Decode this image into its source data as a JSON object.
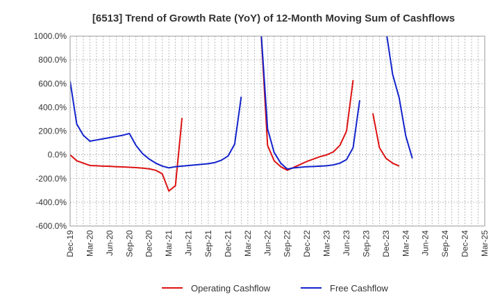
{
  "chart_data": {
    "type": "line",
    "title": "[6513]  Trend of Growth Rate (YoY) of 12-Month Moving Sum of Cashflows",
    "xlabel": "",
    "ylabel": "",
    "ylim": [
      -600,
      1000
    ],
    "yticks": [
      1000,
      800,
      600,
      400,
      200,
      0,
      -200,
      -400,
      -600
    ],
    "ytick_labels": [
      "1000.0%",
      "800.0%",
      "600.0%",
      "400.0%",
      "200.0%",
      "0.0%",
      "-200.0%",
      "-400.0%",
      "-600.0%"
    ],
    "x_months": [
      "Dec-19",
      "Jan-20",
      "Feb-20",
      "Mar-20",
      "Apr-20",
      "May-20",
      "Jun-20",
      "Jul-20",
      "Aug-20",
      "Sep-20",
      "Oct-20",
      "Nov-20",
      "Dec-20",
      "Jan-21",
      "Feb-21",
      "Mar-21",
      "Apr-21",
      "May-21",
      "Jun-21",
      "Jul-21",
      "Aug-21",
      "Sep-21",
      "Oct-21",
      "Nov-21",
      "Dec-21",
      "Jan-22",
      "Feb-22",
      "Mar-22",
      "Apr-22",
      "May-22",
      "Jun-22",
      "Jul-22",
      "Aug-22",
      "Sep-22",
      "Oct-22",
      "Nov-22",
      "Dec-22",
      "Jan-23",
      "Feb-23",
      "Mar-23",
      "Apr-23",
      "May-23",
      "Jun-23",
      "Jul-23",
      "Aug-23",
      "Sep-23",
      "Oct-23",
      "Nov-23",
      "Dec-23",
      "Jan-24",
      "Feb-24",
      "Mar-24",
      "Apr-24",
      "May-24",
      "Jun-24",
      "Jul-24",
      "Aug-24",
      "Sep-24",
      "Oct-24",
      "Nov-24",
      "Dec-24",
      "Jan-25",
      "Feb-25",
      "Mar-25"
    ],
    "x_tick_labels": [
      "Dec-19",
      "Mar-20",
      "Jun-20",
      "Sep-20",
      "Dec-20",
      "Mar-21",
      "Jun-21",
      "Sep-21",
      "Dec-21",
      "Mar-22",
      "Jun-22",
      "Sep-22",
      "Dec-22",
      "Mar-23",
      "Jun-23",
      "Sep-23",
      "Dec-23",
      "Mar-24",
      "Jun-24",
      "Sep-24",
      "Dec-24",
      "Mar-25"
    ],
    "grid": true,
    "legend_position": "bottom",
    "series": [
      {
        "name": "Operating Cashflow",
        "color": "#dd1111",
        "values": [
          0,
          -50,
          -70,
          -90,
          -92,
          -95,
          -97,
          -100,
          -102,
          -105,
          -108,
          -112,
          -118,
          -130,
          -160,
          -305,
          -260,
          310,
          null,
          null,
          null,
          null,
          null,
          null,
          null,
          null,
          null,
          null,
          null,
          1050,
          80,
          -50,
          -100,
          -130,
          -105,
          -80,
          -55,
          -35,
          -15,
          0,
          25,
          80,
          200,
          630,
          null,
          null,
          350,
          60,
          -30,
          -70,
          -95,
          null,
          null,
          null,
          null,
          null,
          null,
          null,
          null,
          null,
          null,
          null,
          null,
          null
        ]
      },
      {
        "name": "Free Cashflow",
        "color": "#1122cc",
        "values": [
          620,
          260,
          165,
          115,
          125,
          135,
          145,
          155,
          165,
          180,
          80,
          10,
          -35,
          -70,
          -95,
          -110,
          -100,
          -95,
          -90,
          -85,
          -80,
          -75,
          -65,
          -45,
          -10,
          90,
          490,
          null,
          null,
          1050,
          220,
          20,
          -70,
          -120,
          -110,
          -105,
          -100,
          -98,
          -95,
          -92,
          -85,
          -70,
          -40,
          60,
          460,
          null,
          null,
          null,
          1050,
          680,
          480,
          160,
          -30,
          null,
          null,
          null,
          null,
          null,
          null,
          null,
          null,
          null,
          null,
          null
        ]
      }
    ]
  }
}
